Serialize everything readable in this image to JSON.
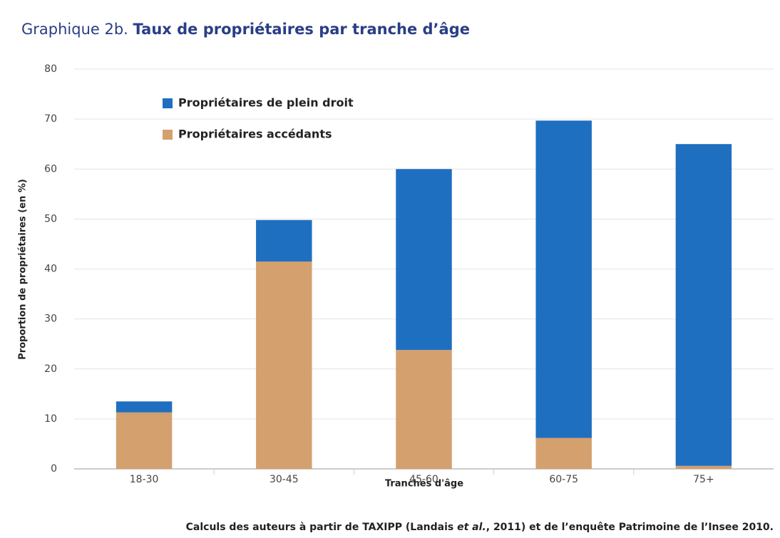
{
  "chart_data": {
    "type": "stacked_bar",
    "title_number": "Graphique 2b.",
    "title": "Taux de propriétaires par tranche d’âge",
    "ylabel": "Proportion de propriétaires (en %)",
    "xlabel": "Tranches d'âge",
    "source": [
      "Calculs des auteurs à partir de TAXIPP (Landais ",
      "et al.",
      ", 2011) et de l’enquête Patrimoine de l’Insee 2010."
    ],
    "categories": [
      "18-30",
      "30-45",
      "45-60",
      "60-75",
      "75+"
    ],
    "series": [
      {
        "name": "Propriétaires de plein droit",
        "color": "#1f6fc0",
        "values": [
          2.2,
          8.3,
          36.2,
          63.5,
          64.4
        ]
      },
      {
        "name": "Propriétaires accédants",
        "color": "#d4a06e",
        "values": [
          11.3,
          41.5,
          23.8,
          6.2,
          0.6
        ]
      }
    ],
    "ylim": [
      0,
      80
    ],
    "yticks": [
      0,
      10,
      20,
      30,
      40,
      50,
      60,
      70,
      80
    ],
    "grid": true,
    "legend": "upper left"
  }
}
